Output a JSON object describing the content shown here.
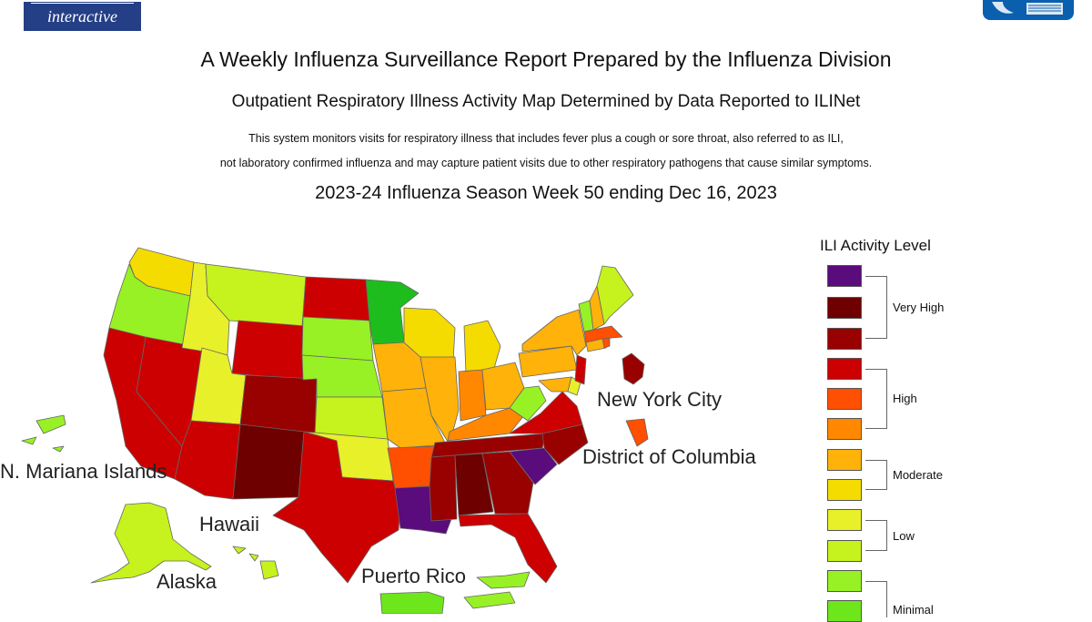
{
  "header": {
    "logo_text": "interactive",
    "title": "A Weekly Influenza Surveillance Report Prepared by the Influenza Division",
    "subtitle": "Outpatient Respiratory Illness Activity Map Determined by Data Reported to ILINet",
    "description_line1": "This system monitors visits for respiratory illness that includes fever plus a cough or sore throat, also referred to as ILI,",
    "description_line2": "not laboratory confirmed influenza and may capture patient visits due to other respiratory pathogens that cause similar symptoms.",
    "week": "2023-24 Influenza Season Week 50 ending Dec 16, 2023"
  },
  "map": {
    "labels": {
      "new_york_city": "New York City",
      "district_of_columbia": "District of Columbia",
      "n_mariana_islands": "N. Mariana Islands",
      "hawaii": "Hawaii",
      "alaska": "Alaska",
      "puerto_rico": "Puerto Rico"
    },
    "level_colors": {
      "13": "#5a0b7c",
      "12": "#6f0000",
      "11": "#990000",
      "10": "#cc0000",
      "9": "#ff4f00",
      "8": "#ff8800",
      "7": "#ffb20a",
      "6": "#f5dc00",
      "5": "#e8f02a",
      "4": "#c6f21d",
      "3": "#98f124",
      "2": "#6ee61c",
      "1": "#1ebd1e"
    },
    "regions": [
      {
        "name": "Washington",
        "level": 6
      },
      {
        "name": "Oregon",
        "level": 3
      },
      {
        "name": "California",
        "level": 10
      },
      {
        "name": "Nevada",
        "level": 10
      },
      {
        "name": "Idaho",
        "level": 5
      },
      {
        "name": "Montana",
        "level": 4
      },
      {
        "name": "Wyoming",
        "level": 10
      },
      {
        "name": "Utah",
        "level": 5
      },
      {
        "name": "Arizona",
        "level": 10
      },
      {
        "name": "Colorado",
        "level": 11
      },
      {
        "name": "New Mexico",
        "level": 12
      },
      {
        "name": "North Dakota",
        "level": 10
      },
      {
        "name": "South Dakota",
        "level": 3
      },
      {
        "name": "Nebraska",
        "level": 3
      },
      {
        "name": "Kansas",
        "level": 4
      },
      {
        "name": "Oklahoma",
        "level": 5
      },
      {
        "name": "Texas",
        "level": 10
      },
      {
        "name": "Minnesota",
        "level": 1
      },
      {
        "name": "Iowa",
        "level": 7
      },
      {
        "name": "Missouri",
        "level": 7
      },
      {
        "name": "Arkansas",
        "level": 9
      },
      {
        "name": "Louisiana",
        "level": 13
      },
      {
        "name": "Wisconsin",
        "level": 6
      },
      {
        "name": "Illinois",
        "level": 7
      },
      {
        "name": "Michigan",
        "level": 6
      },
      {
        "name": "Indiana",
        "level": 8
      },
      {
        "name": "Ohio",
        "level": 7
      },
      {
        "name": "Kentucky",
        "level": 8
      },
      {
        "name": "Tennessee",
        "level": 11
      },
      {
        "name": "Mississippi",
        "level": 11
      },
      {
        "name": "Alabama",
        "level": 12
      },
      {
        "name": "Georgia",
        "level": 11
      },
      {
        "name": "Florida",
        "level": 10
      },
      {
        "name": "South Carolina",
        "level": 13
      },
      {
        "name": "North Carolina",
        "level": 11
      },
      {
        "name": "Virginia",
        "level": 10
      },
      {
        "name": "West Virginia",
        "level": 3
      },
      {
        "name": "Pennsylvania",
        "level": 7
      },
      {
        "name": "New York",
        "level": 7
      },
      {
        "name": "Maryland",
        "level": 7
      },
      {
        "name": "Delaware",
        "level": 5
      },
      {
        "name": "New Jersey",
        "level": 10
      },
      {
        "name": "Connecticut",
        "level": 7
      },
      {
        "name": "Rhode Island",
        "level": 9
      },
      {
        "name": "Massachusetts",
        "level": 9
      },
      {
        "name": "Vermont",
        "level": 3
      },
      {
        "name": "New Hampshire",
        "level": 7
      },
      {
        "name": "Maine",
        "level": 4
      },
      {
        "name": "New York City",
        "level": 11
      },
      {
        "name": "District of Columbia",
        "level": 9
      },
      {
        "name": "Alaska",
        "level": 4
      },
      {
        "name": "Hawaii",
        "level": 4
      },
      {
        "name": "Puerto Rico",
        "level": 2
      },
      {
        "name": "N. Mariana Islands",
        "level": 3
      },
      {
        "name": "U.S. Virgin Islands",
        "level": 3
      }
    ]
  },
  "legend": {
    "title": "ILI Activity Level",
    "groups": [
      {
        "label": "Very High"
      },
      {
        "label": "High"
      },
      {
        "label": "Moderate"
      },
      {
        "label": "Low"
      },
      {
        "label": "Minimal"
      }
    ],
    "swatches": [
      {
        "level": 13,
        "color": "#5a0b7c"
      },
      {
        "level": 12,
        "color": "#6f0000"
      },
      {
        "level": 11,
        "color": "#990000"
      },
      {
        "level": 10,
        "color": "#cc0000"
      },
      {
        "level": 9,
        "color": "#ff4f00"
      },
      {
        "level": 8,
        "color": "#ff8800"
      },
      {
        "level": 7,
        "color": "#ffb20a"
      },
      {
        "level": 6,
        "color": "#f5dc00"
      },
      {
        "level": 5,
        "color": "#e8f02a"
      },
      {
        "level": 4,
        "color": "#c6f21d"
      },
      {
        "level": 3,
        "color": "#98f124"
      },
      {
        "level": 2,
        "color": "#6ee61c"
      }
    ]
  }
}
